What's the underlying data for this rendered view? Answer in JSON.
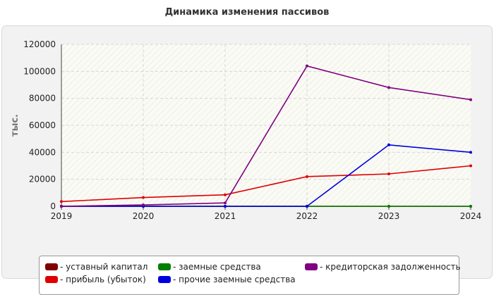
{
  "chart_data": {
    "type": "line",
    "title": "Динамика изменения пассивов",
    "xlabel": "",
    "ylabel": "тыс.",
    "x": [
      2019,
      2020,
      2021,
      2022,
      2023,
      2024
    ],
    "x_tick_labels": [
      "2019",
      "2020",
      "2021",
      "2022",
      "2023",
      "2024"
    ],
    "ylim": [
      0,
      120000
    ],
    "y_ticks": [
      0,
      20000,
      40000,
      60000,
      80000,
      100000,
      120000
    ],
    "grid": true,
    "legend_position": "bottom",
    "series": [
      {
        "name": "- уставный капитал",
        "color": "#800000",
        "values": [
          0,
          0,
          0,
          0,
          0,
          0
        ]
      },
      {
        "name": "- прибыль (убыток)",
        "color": "#e00000",
        "values": [
          3500,
          6500,
          8500,
          22000,
          24000,
          30000
        ]
      },
      {
        "name": "- заемные средства",
        "color": "#008000",
        "values": [
          0,
          0,
          0,
          0,
          0,
          0
        ]
      },
      {
        "name": "- прочие заемные средства",
        "color": "#0000e0",
        "values": [
          0,
          0,
          0,
          0,
          45500,
          40000
        ]
      },
      {
        "name": "- кредиторская задолженность",
        "color": "#800080",
        "values": [
          0,
          1000,
          2500,
          104000,
          88000,
          79000
        ]
      }
    ]
  }
}
